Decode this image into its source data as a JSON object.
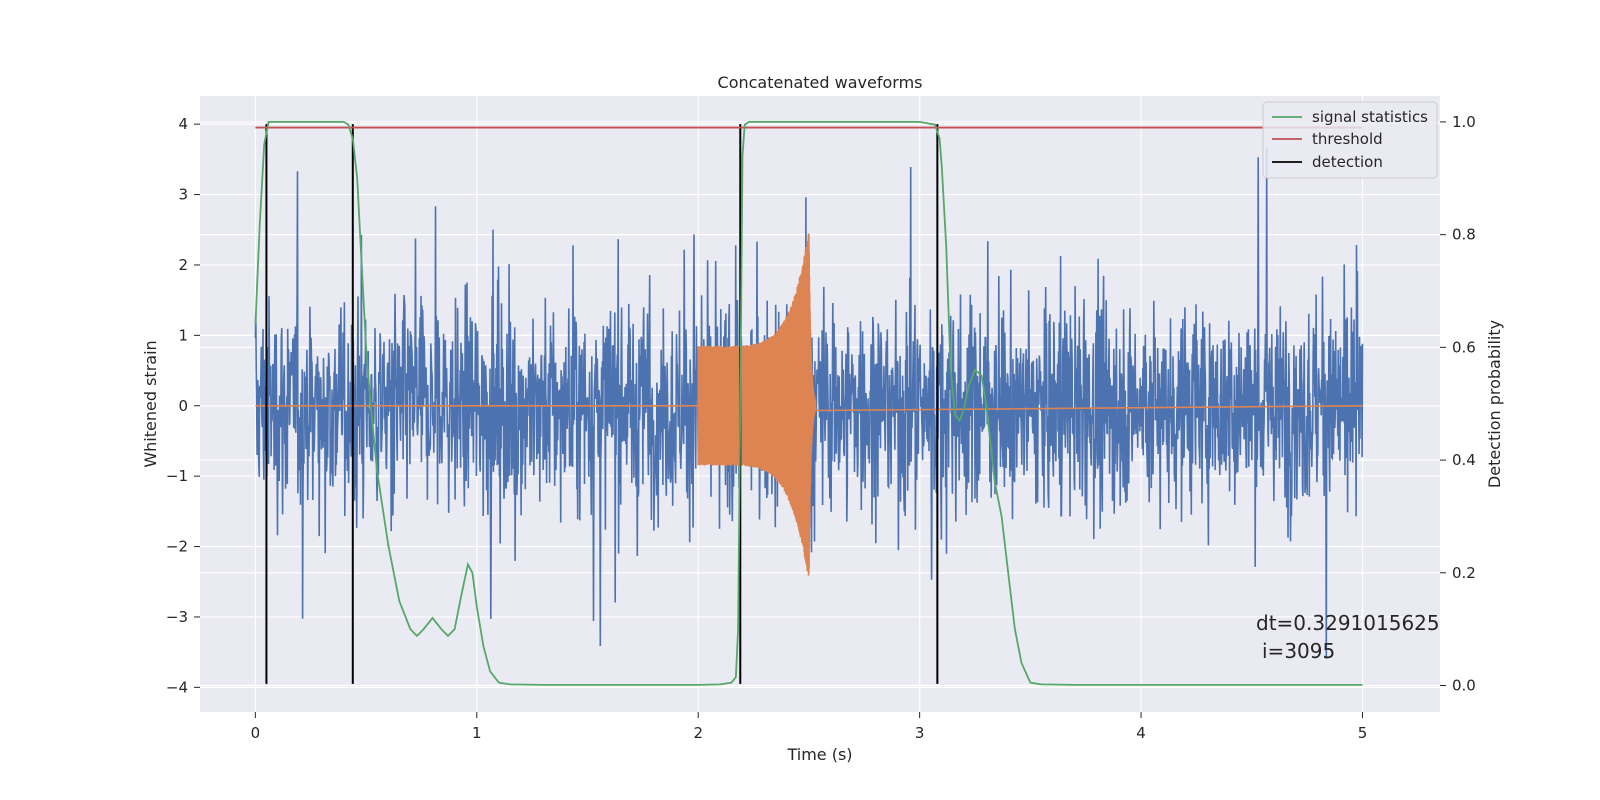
{
  "chart_data": {
    "type": "line",
    "title": "Concatenated waveforms",
    "xlabel": "Time (s)",
    "ylabel_left": "Whitened strain",
    "ylabel_right": "Detection probability",
    "xlim": [
      -0.25,
      5.35
    ],
    "ylim_left": [
      -4.35,
      4.4
    ],
    "ylim_right": [
      -0.047,
      1.046
    ],
    "xticks": [
      0,
      1,
      2,
      3,
      4,
      5
    ],
    "yticks_left": [
      -4,
      -3,
      -2,
      -1,
      0,
      1,
      2,
      3,
      4
    ],
    "yticks_right": [
      0.0,
      0.2,
      0.4,
      0.6,
      0.8,
      1.0
    ],
    "grid": true,
    "legend_placement": "top-right",
    "colors": {
      "noise": "#4c72b0",
      "waveform": "#dd8452",
      "signal_statistics": "#55a868",
      "threshold": "#c44e52",
      "detection": "#000000",
      "background": "#eaeaf2",
      "grid": "#ffffff"
    },
    "series": [
      {
        "name": "signal statistics",
        "axis": "right",
        "x": [
          0.0,
          0.02,
          0.04,
          0.06,
          0.08,
          0.12,
          0.2,
          0.3,
          0.4,
          0.42,
          0.44,
          0.46,
          0.48,
          0.5,
          0.52,
          0.55,
          0.6,
          0.65,
          0.7,
          0.73,
          0.76,
          0.8,
          0.84,
          0.87,
          0.9,
          0.93,
          0.96,
          0.98,
          1.0,
          1.03,
          1.06,
          1.1,
          1.15,
          1.3,
          1.6,
          2.0,
          2.1,
          2.15,
          2.17,
          2.18,
          2.19,
          2.2,
          2.21,
          2.23,
          2.3,
          2.6,
          3.0,
          3.07,
          3.09,
          3.1,
          3.12,
          3.14,
          3.16,
          3.18,
          3.2,
          3.22,
          3.25,
          3.28,
          3.3,
          3.32,
          3.34,
          3.37,
          3.4,
          3.43,
          3.46,
          3.5,
          3.55,
          3.7,
          4.0,
          4.5,
          5.0
        ],
        "y": [
          0.64,
          0.82,
          0.96,
          1.0,
          1.0,
          1.0,
          1.0,
          1.0,
          1.0,
          0.995,
          0.97,
          0.9,
          0.75,
          0.6,
          0.5,
          0.38,
          0.25,
          0.15,
          0.1,
          0.088,
          0.1,
          0.12,
          0.1,
          0.088,
          0.1,
          0.16,
          0.215,
          0.2,
          0.14,
          0.07,
          0.025,
          0.005,
          0.002,
          0.001,
          0.001,
          0.001,
          0.002,
          0.005,
          0.015,
          0.1,
          0.5,
          0.94,
          0.995,
          1.0,
          1.0,
          1.0,
          1.0,
          0.995,
          0.97,
          0.92,
          0.78,
          0.56,
          0.48,
          0.47,
          0.49,
          0.53,
          0.56,
          0.55,
          0.5,
          0.43,
          0.36,
          0.3,
          0.2,
          0.1,
          0.04,
          0.005,
          0.002,
          0.001,
          0.001,
          0.001,
          0.001
        ]
      },
      {
        "name": "threshold",
        "axis": "right",
        "x": [
          0.0,
          5.0
        ],
        "y": [
          0.99,
          0.99
        ]
      },
      {
        "name": "detection",
        "axis": "left",
        "x": [
          0.05,
          0.44,
          2.19,
          3.08
        ],
        "y_range": [
          -3.95,
          4.0
        ]
      },
      {
        "name": "",
        "axis": "left",
        "kind": "noise",
        "x_range": [
          0.0,
          5.0
        ],
        "typical_amplitude": 0.85,
        "peak_amplitude": 4.0
      },
      {
        "name": "",
        "axis": "left",
        "kind": "chirp",
        "x_range": [
          2.0,
          2.53
        ],
        "start_amplitude": 0.85,
        "peak_amplitude": 2.5,
        "peak_x": 2.5
      }
    ],
    "annotation": {
      "line1": "dt=0.3291015625",
      "line2": "i=3095"
    }
  }
}
